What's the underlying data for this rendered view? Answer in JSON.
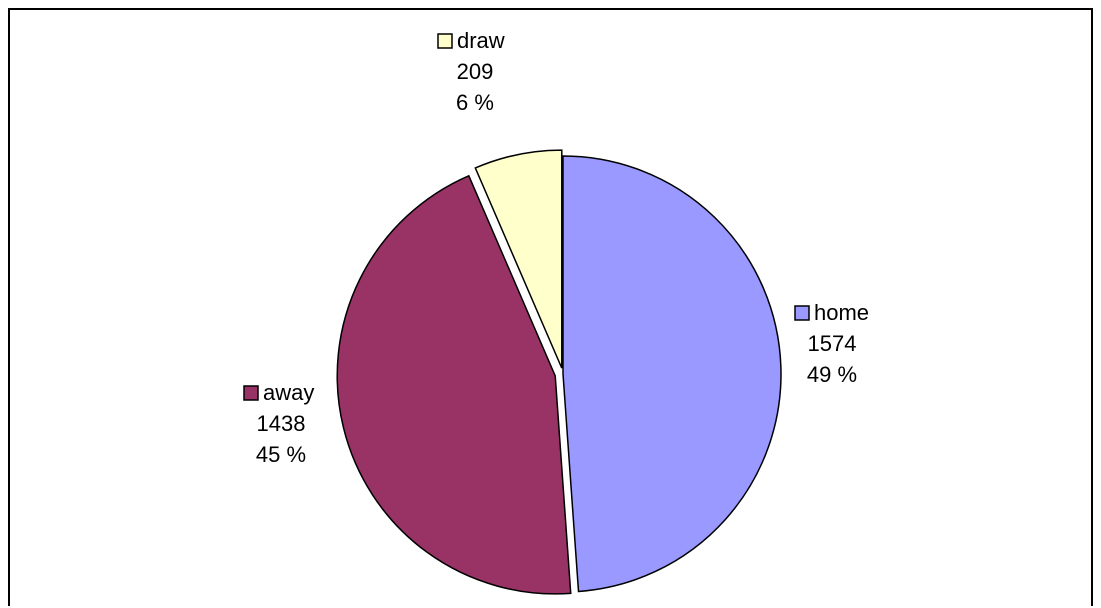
{
  "chart_data": {
    "type": "pie",
    "title": "",
    "slices": [
      {
        "name": "home",
        "value": 1574,
        "percent_label": "49 %",
        "color": "#9999FF"
      },
      {
        "name": "away",
        "value": 1438,
        "percent_label": "45 %",
        "color": "#993366"
      },
      {
        "name": "draw",
        "value": 209,
        "percent_label": "6 %",
        "color": "#FFFFCC"
      }
    ],
    "start_angle": "12 o'clock",
    "direction": "clockwise",
    "exploded": true,
    "label_content": [
      "legend key",
      "category name",
      "value",
      "percentage"
    ]
  }
}
